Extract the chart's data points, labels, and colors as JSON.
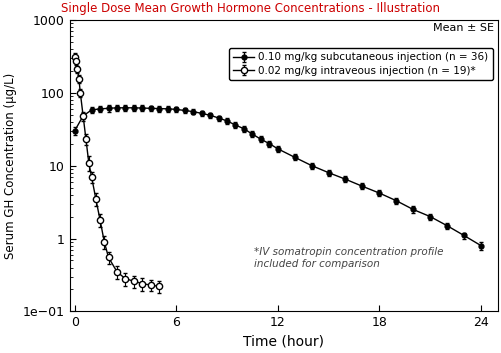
{
  "title": "Single Dose Mean Growth Hormone Concentrations - Illustration",
  "title_color": "#cc0000",
  "xlabel": "Time (hour)",
  "ylabel": "Serum GH Concentration (μg/L)",
  "xlim": [
    -0.3,
    25
  ],
  "ylim": [
    0.1,
    1000
  ],
  "xticks": [
    0,
    6,
    12,
    18,
    24
  ],
  "annotation": "*IV somatropin concentration profile\nincluded for comparison",
  "mean_se_label": "Mean ± SE",
  "legend1": "0.10 mg/kg subcutaneous injection (n = 36)",
  "legend2": "0.02 mg/kg intraveous injection (n = 19)*",
  "sc_time": [
    0,
    0.5,
    1.0,
    1.5,
    2.0,
    2.5,
    3.0,
    3.5,
    4.0,
    4.5,
    5.0,
    5.5,
    6.0,
    6.5,
    7.0,
    7.5,
    8.0,
    8.5,
    9.0,
    9.5,
    10.0,
    10.5,
    11.0,
    11.5,
    12.0,
    13.0,
    14.0,
    15.0,
    16.0,
    17.0,
    18.0,
    19.0,
    20.0,
    21.0,
    22.0,
    23.0,
    24.0
  ],
  "sc_conc": [
    30.0,
    48.0,
    58.0,
    60.0,
    61.0,
    62.0,
    62.0,
    62.0,
    61.5,
    61.0,
    60.5,
    60.0,
    59.0,
    57.0,
    55.0,
    52.0,
    49.0,
    45.0,
    41.0,
    36.0,
    32.0,
    27.0,
    23.0,
    20.0,
    17.0,
    13.0,
    10.0,
    8.0,
    6.5,
    5.2,
    4.2,
    3.3,
    2.5,
    2.0,
    1.5,
    1.1,
    0.8
  ],
  "sc_se": [
    4.0,
    5.0,
    6.0,
    6.5,
    6.5,
    6.5,
    6.5,
    6.0,
    6.0,
    5.5,
    5.5,
    5.0,
    5.0,
    4.5,
    4.5,
    4.0,
    4.0,
    3.5,
    3.5,
    3.0,
    2.8,
    2.5,
    2.2,
    1.8,
    1.5,
    1.2,
    1.0,
    0.8,
    0.6,
    0.5,
    0.4,
    0.3,
    0.25,
    0.2,
    0.15,
    0.1,
    0.1
  ],
  "iv_time": [
    0,
    0.083,
    0.167,
    0.25,
    0.333,
    0.5,
    0.667,
    0.833,
    1.0,
    1.25,
    1.5,
    1.75,
    2.0,
    2.5,
    3.0,
    3.5,
    4.0,
    4.5,
    5.0
  ],
  "iv_conc": [
    310.0,
    270.0,
    210.0,
    155.0,
    100.0,
    48.0,
    23.0,
    11.0,
    7.0,
    3.5,
    1.8,
    0.9,
    0.55,
    0.35,
    0.28,
    0.26,
    0.24,
    0.23,
    0.22
  ],
  "iv_se": [
    35.0,
    30.0,
    25.0,
    20.0,
    14.0,
    7.0,
    4.0,
    2.5,
    1.2,
    0.7,
    0.35,
    0.18,
    0.1,
    0.07,
    0.06,
    0.05,
    0.05,
    0.04,
    0.04
  ],
  "line_color": "#000000",
  "background_color": "#ffffff"
}
